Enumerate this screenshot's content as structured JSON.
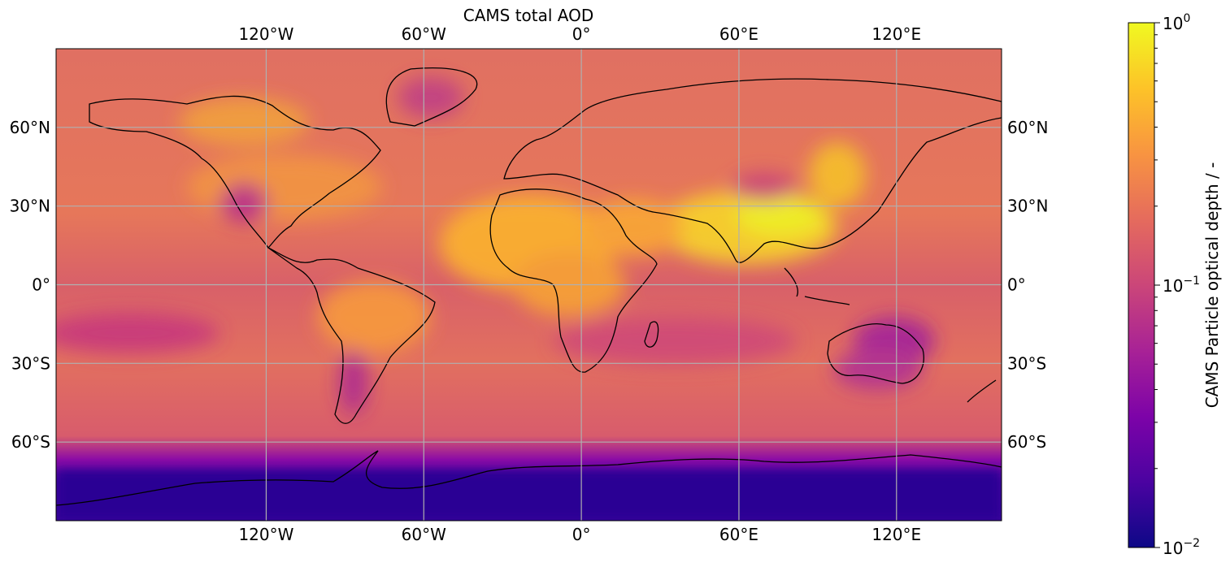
{
  "map": {
    "title": "CAMS total AOD",
    "projection": "PlateCarree",
    "gridlines": true,
    "coastlines": true,
    "lon_ticks": [
      {
        "value": -120,
        "label": "120°W"
      },
      {
        "value": -60,
        "label": "60°W"
      },
      {
        "value": 0,
        "label": "0°"
      },
      {
        "value": 60,
        "label": "60°E"
      },
      {
        "value": 120,
        "label": "120°E"
      }
    ],
    "lat_ticks": [
      {
        "value": 60,
        "label": "60°N"
      },
      {
        "value": 30,
        "label": "30°N"
      },
      {
        "value": 0,
        "label": "0°"
      },
      {
        "value": -30,
        "label": "30°S"
      },
      {
        "value": -60,
        "label": "60°S"
      }
    ],
    "colormap": "plasma",
    "colors": {
      "gridline": "#b0b0b0",
      "coastline": "#000000"
    }
  },
  "colorbar": {
    "label": "CAMS Particle optical depth / -",
    "scale": "log",
    "range": [
      0.01,
      1
    ],
    "ticks": [
      {
        "value": 1,
        "base": "10",
        "exp": "0"
      },
      {
        "value": 0.1,
        "base": "10",
        "exp": "−1"
      },
      {
        "value": 0.01,
        "base": "10",
        "exp": "−2"
      }
    ]
  }
}
